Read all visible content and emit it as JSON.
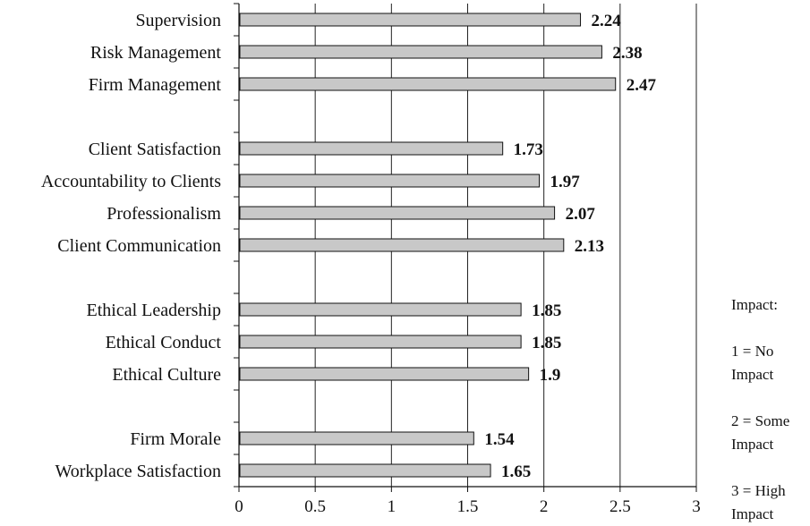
{
  "chart_data": {
    "type": "bar",
    "orientation": "horizontal",
    "categories": [
      "Supervision",
      "Risk Management",
      "Firm Management",
      "",
      "Client Satisfaction",
      "Accountability to Clients",
      "Professionalism",
      "Client Communication",
      "",
      "Ethical Leadership",
      "Ethical Conduct",
      "Ethical Culture",
      "",
      "Firm Morale",
      "Workplace Satisfaction"
    ],
    "values": [
      2.24,
      2.38,
      2.47,
      null,
      1.73,
      1.97,
      2.07,
      2.13,
      null,
      1.85,
      1.85,
      1.9,
      null,
      1.54,
      1.65
    ],
    "value_labels": [
      "2.24",
      "2.38",
      "2.47",
      "",
      "1.73",
      "1.97",
      "2.07",
      "2.13",
      "",
      "1.85",
      "1.85",
      "1.9",
      "",
      "1.54",
      "1.65"
    ],
    "xlim": [
      0,
      3
    ],
    "xticks": [
      "0",
      "0.5",
      "1",
      "1.5",
      "2",
      "2.5",
      "3"
    ],
    "xtick_values": [
      0,
      0.5,
      1,
      1.5,
      2,
      2.5,
      3
    ],
    "grid": true,
    "bar_color": "#c8c8c8",
    "title": "",
    "xlabel": "",
    "ylabel": ""
  },
  "legend": {
    "heading": "Impact:",
    "items": [
      "1 = No Impact",
      "2 = Some Impact",
      "3 = High Impact"
    ]
  }
}
